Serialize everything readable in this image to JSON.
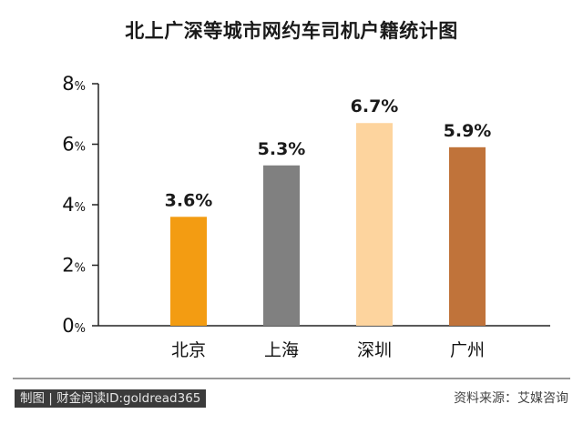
{
  "chart_data": {
    "type": "bar",
    "title": "北上广深等城市网约车司机户籍统计图",
    "categories": [
      "北京",
      "上海",
      "深圳",
      "广州"
    ],
    "values": [
      3.6,
      5.3,
      6.7,
      5.9
    ],
    "data_labels": [
      "3.6%",
      "5.3%",
      "6.7%",
      "5.9%"
    ],
    "colors": [
      "#f39c12",
      "#808080",
      "#fdd49e",
      "#c0733a"
    ],
    "ylim": [
      0,
      8
    ],
    "yticks": [
      {
        "value": 0,
        "num": "0",
        "unit": "%"
      },
      {
        "value": 2,
        "num": "2",
        "unit": "%"
      },
      {
        "value": 4,
        "num": "4",
        "unit": "%"
      },
      {
        "value": 6,
        "num": "6",
        "unit": "%"
      },
      {
        "value": 8,
        "num": "8",
        "unit": "%"
      }
    ],
    "xlabel": "",
    "ylabel": "",
    "grid": false,
    "legend": "none"
  },
  "footer": {
    "credit": "制图 | 财金阅读ID:goldread365",
    "source": "资料来源：艾媒咨询"
  }
}
